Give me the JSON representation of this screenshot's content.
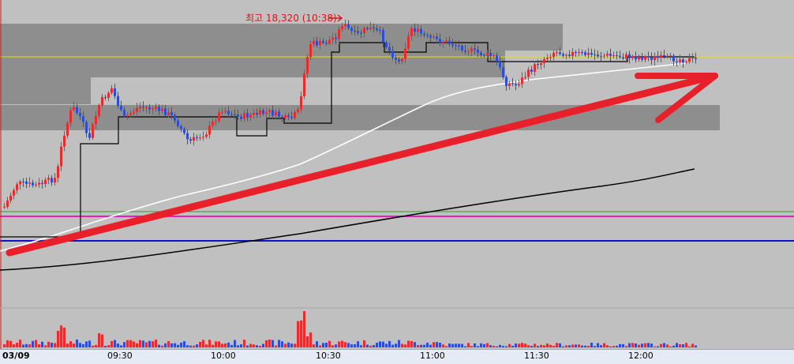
{
  "chart_data": {
    "type": "candlestick",
    "title": "",
    "x_axis": {
      "first_label": "03/09",
      "tick_labels": [
        "09:30",
        "10:00",
        "10:30",
        "11:00",
        "11:30",
        "12:00"
      ]
    },
    "annotations": [
      {
        "text": "최고 18,320 (10:38)",
        "kind": "high-marker",
        "value": 18320,
        "time": "10:38"
      }
    ],
    "price_range_estimate": [
      17600,
      18400
    ],
    "overlays": [
      "moving-average-white",
      "moving-average-black",
      "step-line",
      "horizontal-levels",
      "volume-bars",
      "red-arrow"
    ],
    "colors": {
      "up": "#e82c2c",
      "down": "#2a4fd4",
      "ma_short": "#ffffff",
      "ma_long": "#000000",
      "level_yellow": "#e8e000",
      "level_green": "#2f9e2f",
      "level_magenta": "#e020c0",
      "level_blue": "#1010c8",
      "arrow": "#e8202a",
      "zone": "#8e8e8e"
    }
  }
}
